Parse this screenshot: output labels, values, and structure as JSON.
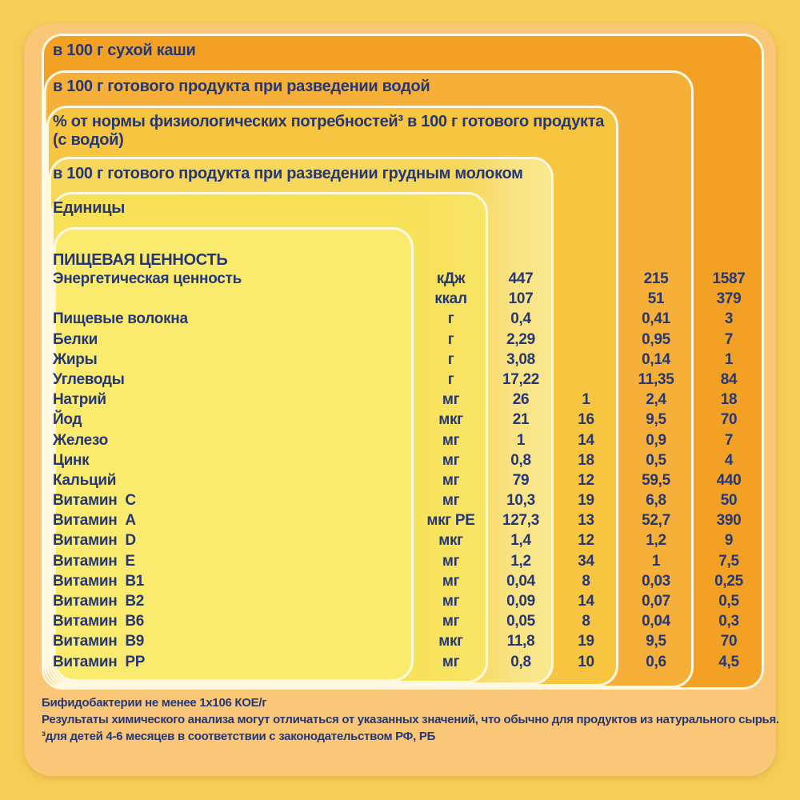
{
  "headers": {
    "dry": "в 100 г сухой каши",
    "water": "в 100 г готового продукта при разведении водой",
    "percent_line1": "% от нормы физиологических потребностей³  в 100 г готового продукта",
    "percent_line2": "(с водой)",
    "milk": "в 100 г готового продукта при разведении грудным молоком",
    "units": "Единицы"
  },
  "section_title": "ПИЩЕВАЯ ЦЕННОСТЬ",
  "columns": [
    "Единицы",
    "в 100 г готового продукта при разведении грудным молоком",
    "% от нормы физиологических потребностей³ в 100 г готового продукта (с водой)",
    "в 100 г готового продукта при разведении водой",
    "в 100 г сухой каши"
  ],
  "rows": [
    {
      "label": "Энергетическая ценность",
      "unit": "кДж",
      "milk": "447",
      "percent": "",
      "water": "215",
      "dry": "1587"
    },
    {
      "label": "",
      "unit": "ккал",
      "milk": "107",
      "percent": "",
      "water": "51",
      "dry": "379"
    },
    {
      "label": "Пищевые волокна",
      "unit": "г",
      "milk": "0,4",
      "percent": "",
      "water": "0,41",
      "dry": "3"
    },
    {
      "label": "Белки",
      "unit": "г",
      "milk": "2,29",
      "percent": "",
      "water": "0,95",
      "dry": "7"
    },
    {
      "label": "Жиры",
      "unit": "г",
      "milk": "3,08",
      "percent": "",
      "water": "0,14",
      "dry": "1"
    },
    {
      "label": "Углеводы",
      "unit": "г",
      "milk": "17,22",
      "percent": "",
      "water": "11,35",
      "dry": "84"
    },
    {
      "label": "Натрий",
      "unit": "мг",
      "milk": "26",
      "percent": "1",
      "water": "2,4",
      "dry": "18"
    },
    {
      "label": "Йод",
      "unit": "мкг",
      "milk": "21",
      "percent": "16",
      "water": "9,5",
      "dry": "70"
    },
    {
      "label": "Железо",
      "unit": "мг",
      "milk": "1",
      "percent": "14",
      "water": "0,9",
      "dry": "7"
    },
    {
      "label": "Цинк",
      "unit": "мг",
      "milk": "0,8",
      "percent": "18",
      "water": "0,5",
      "dry": "4"
    },
    {
      "label": "Кальций",
      "unit": "мг",
      "milk": "79",
      "percent": "12",
      "water": "59,5",
      "dry": "440"
    },
    {
      "label": "Витамин  С",
      "unit": "мг",
      "milk": "10,3",
      "percent": "19",
      "water": "6,8",
      "dry": "50"
    },
    {
      "label": "Витамин  А",
      "unit": "мкг РЕ",
      "milk": "127,3",
      "percent": "13",
      "water": "52,7",
      "dry": "390"
    },
    {
      "label": "Витамин  D",
      "unit": "мкг",
      "milk": "1,4",
      "percent": "12",
      "water": "1,2",
      "dry": "9"
    },
    {
      "label": "Витамин  Е",
      "unit": "мг",
      "milk": "1,2",
      "percent": "34",
      "water": "1",
      "dry": "7,5"
    },
    {
      "label": "Витамин  В1",
      "unit": "мг",
      "milk": "0,04",
      "percent": "8",
      "water": "0,03",
      "dry": "0,25"
    },
    {
      "label": "Витамин  В2",
      "unit": "мг",
      "milk": "0,09",
      "percent": "14",
      "water": "0,07",
      "dry": "0,5"
    },
    {
      "label": "Витамин  В6",
      "unit": "мг",
      "milk": "0,05",
      "percent": "8",
      "water": "0,04",
      "dry": "0,3"
    },
    {
      "label": "Витамин  В9",
      "unit": "мкг",
      "milk": "11,8",
      "percent": "19",
      "water": "9,5",
      "dry": "70"
    },
    {
      "label": "Витамин  РР",
      "unit": "мг",
      "milk": "0,8",
      "percent": "10",
      "water": "0,6",
      "dry": "4,5"
    }
  ],
  "footnotes": [
    "Бифидобактерии не менее 1х106 КОЕ/г",
    "Результаты химического анализа могут отличаться от указанных значений, что обычно для продуктов из натурального сырья.",
    "³для детей 4-6 месяцев в соответствии с законодательством РФ, РБ"
  ],
  "colors": {
    "page_background": "#F5CE58",
    "card_background": "#FAC678",
    "ring_dry": "#F3A124",
    "ring_water": "#F6B039",
    "ring_percent": "#F7C53F",
    "ring_breast_milk": "#F6D75C",
    "ring_units": "#F7E158",
    "ring_nutrition": "#FAEB6E",
    "text": "#253774",
    "divider": "#FFF8E2"
  }
}
